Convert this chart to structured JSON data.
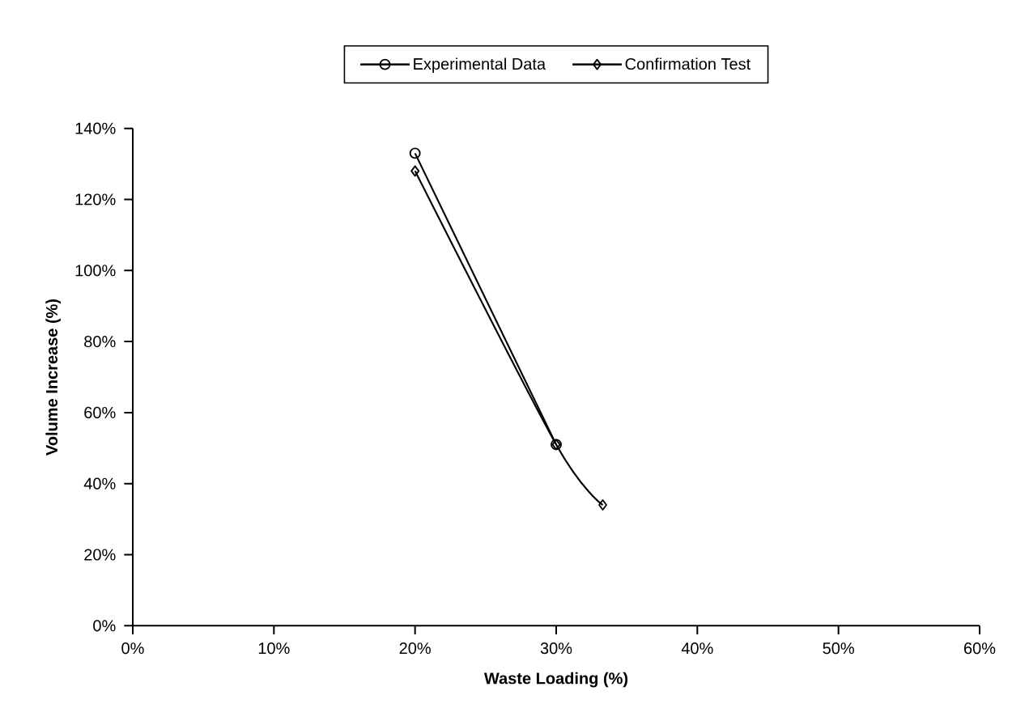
{
  "chart_data": {
    "type": "line",
    "xlabel": "Waste Loading (%)",
    "ylabel": "Volume Increase (%)",
    "xlim": [
      0,
      60
    ],
    "ylim": [
      0,
      140
    ],
    "xticks": [
      {
        "value": 0,
        "label": "0%"
      },
      {
        "value": 10,
        "label": "10%"
      },
      {
        "value": 20,
        "label": "20%"
      },
      {
        "value": 30,
        "label": "30%"
      },
      {
        "value": 40,
        "label": "40%"
      },
      {
        "value": 50,
        "label": "50%"
      },
      {
        "value": 60,
        "label": "60%"
      }
    ],
    "yticks": [
      {
        "value": 0,
        "label": "0%"
      },
      {
        "value": 20,
        "label": "20%"
      },
      {
        "value": 40,
        "label": "40%"
      },
      {
        "value": 60,
        "label": "60%"
      },
      {
        "value": 80,
        "label": "80%"
      },
      {
        "value": 100,
        "label": "100%"
      },
      {
        "value": 120,
        "label": "120%"
      },
      {
        "value": 140,
        "label": "140%"
      }
    ],
    "series": [
      {
        "name": "Experimental Data",
        "color": "#000000",
        "marker": "circle",
        "x": [
          20,
          30
        ],
        "values": [
          133,
          51
        ]
      },
      {
        "name": "Confirmation Test",
        "color": "#000000",
        "marker": "diamond",
        "x": [
          20,
          30,
          33.3
        ],
        "values": [
          128,
          51,
          34
        ]
      }
    ],
    "legend": "top",
    "grid": false,
    "line_style": "solid"
  }
}
